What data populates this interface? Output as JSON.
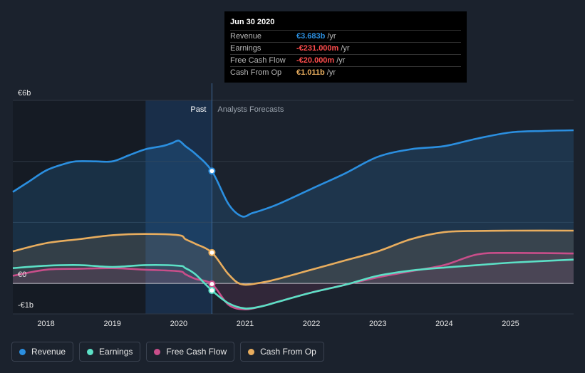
{
  "chart_data": {
    "type": "line",
    "currency": "€",
    "y_tick_labels": [
      "€6b",
      "€0",
      "-€1b"
    ],
    "y_tick_values": [
      6,
      0,
      -1
    ],
    "ylim": [
      -1,
      6
    ],
    "xlim": [
      2017.5,
      2025.95
    ],
    "x_tick_labels": [
      "2018",
      "2019",
      "2020",
      "2021",
      "2022",
      "2023",
      "2024",
      "2025"
    ],
    "x_tick_values": [
      2018,
      2019,
      2020,
      2021,
      2022,
      2023,
      2024,
      2025
    ],
    "gridlines": [
      6,
      4,
      2,
      0,
      -1
    ],
    "divider_x": 2020.5,
    "highlight_start": 2019.5,
    "past_label": "Past",
    "forecast_label": "Analysts Forecasts",
    "series": [
      {
        "name": "Revenue",
        "color": "#2b8fe0",
        "fill": true,
        "marker": 3.683,
        "x": [
          2017.5,
          2017.75,
          2018,
          2018.25,
          2018.45,
          2018.75,
          2019,
          2019.25,
          2019.5,
          2019.75,
          2019.9,
          2020.0,
          2020.1,
          2020.25,
          2020.5,
          2020.75,
          2020.95,
          2021.1,
          2021.25,
          2021.5,
          2022,
          2022.5,
          2023,
          2023.5,
          2024,
          2024.5,
          2025,
          2025.5,
          2025.95
        ],
        "values": [
          3.0,
          3.35,
          3.7,
          3.9,
          4.0,
          4.0,
          4.0,
          4.2,
          4.4,
          4.5,
          4.6,
          4.68,
          4.5,
          4.25,
          3.683,
          2.6,
          2.2,
          2.3,
          2.4,
          2.6,
          3.1,
          3.6,
          4.15,
          4.4,
          4.5,
          4.75,
          4.95,
          5.0,
          5.02
        ]
      },
      {
        "name": "Earnings",
        "color": "#5ce0c6",
        "fill": false,
        "marker": -0.231,
        "x": [
          2017.5,
          2018,
          2018.5,
          2019,
          2019.5,
          2020,
          2020.1,
          2020.25,
          2020.5,
          2020.75,
          2021,
          2021.25,
          2021.5,
          2022,
          2022.5,
          2023,
          2023.5,
          2024,
          2024.5,
          2025,
          2025.95
        ],
        "values": [
          0.5,
          0.58,
          0.6,
          0.54,
          0.6,
          0.58,
          0.5,
          0.3,
          -0.231,
          -0.65,
          -0.82,
          -0.75,
          -0.6,
          -0.3,
          -0.05,
          0.25,
          0.42,
          0.52,
          0.6,
          0.68,
          0.78
        ]
      },
      {
        "name": "Free Cash Flow",
        "color": "#c94e8a",
        "fill": true,
        "marker": -0.02,
        "x": [
          2017.5,
          2018,
          2018.5,
          2019,
          2019.5,
          2020,
          2020.1,
          2020.25,
          2020.5,
          2020.75,
          2021,
          2021.25,
          2021.5,
          2022,
          2022.5,
          2023,
          2023.5,
          2024,
          2024.5,
          2025,
          2025.95
        ],
        "values": [
          0.25,
          0.45,
          0.48,
          0.5,
          0.45,
          0.4,
          0.3,
          0.15,
          -0.02,
          -0.7,
          -0.85,
          -0.75,
          -0.6,
          -0.3,
          -0.05,
          0.2,
          0.4,
          0.6,
          0.95,
          1.0,
          0.98
        ]
      },
      {
        "name": "Cash From Op",
        "color": "#e8ad5e",
        "fill": true,
        "marker": 1.011,
        "x": [
          2017.5,
          2018,
          2018.5,
          2019,
          2019.5,
          2020,
          2020.1,
          2020.25,
          2020.5,
          2020.75,
          2020.95,
          2021.25,
          2021.5,
          2022,
          2022.5,
          2023,
          2023.5,
          2024,
          2024.5,
          2025,
          2025.95
        ],
        "values": [
          1.05,
          1.32,
          1.45,
          1.58,
          1.62,
          1.58,
          1.45,
          1.3,
          1.011,
          0.3,
          -0.03,
          0.03,
          0.15,
          0.45,
          0.75,
          1.05,
          1.45,
          1.68,
          1.72,
          1.73,
          1.73
        ]
      }
    ]
  },
  "tooltip": {
    "date": "Jun 30 2020",
    "rows": [
      {
        "label": "Revenue",
        "value": "€3.683b",
        "unit": "/yr",
        "color": "#2b8fe0"
      },
      {
        "label": "Earnings",
        "value": "-€231.000m",
        "unit": "/yr",
        "color": "#ff4d4d"
      },
      {
        "label": "Free Cash Flow",
        "value": "-€20.000m",
        "unit": "/yr",
        "color": "#ff4d4d"
      },
      {
        "label": "Cash From Op",
        "value": "€1.011b",
        "unit": "/yr",
        "color": "#e8ad5e"
      }
    ]
  },
  "legend": [
    {
      "label": "Revenue",
      "color": "#2b8fe0"
    },
    {
      "label": "Earnings",
      "color": "#5ce0c6"
    },
    {
      "label": "Free Cash Flow",
      "color": "#c94e8a"
    },
    {
      "label": "Cash From Op",
      "color": "#e8ad5e"
    }
  ]
}
